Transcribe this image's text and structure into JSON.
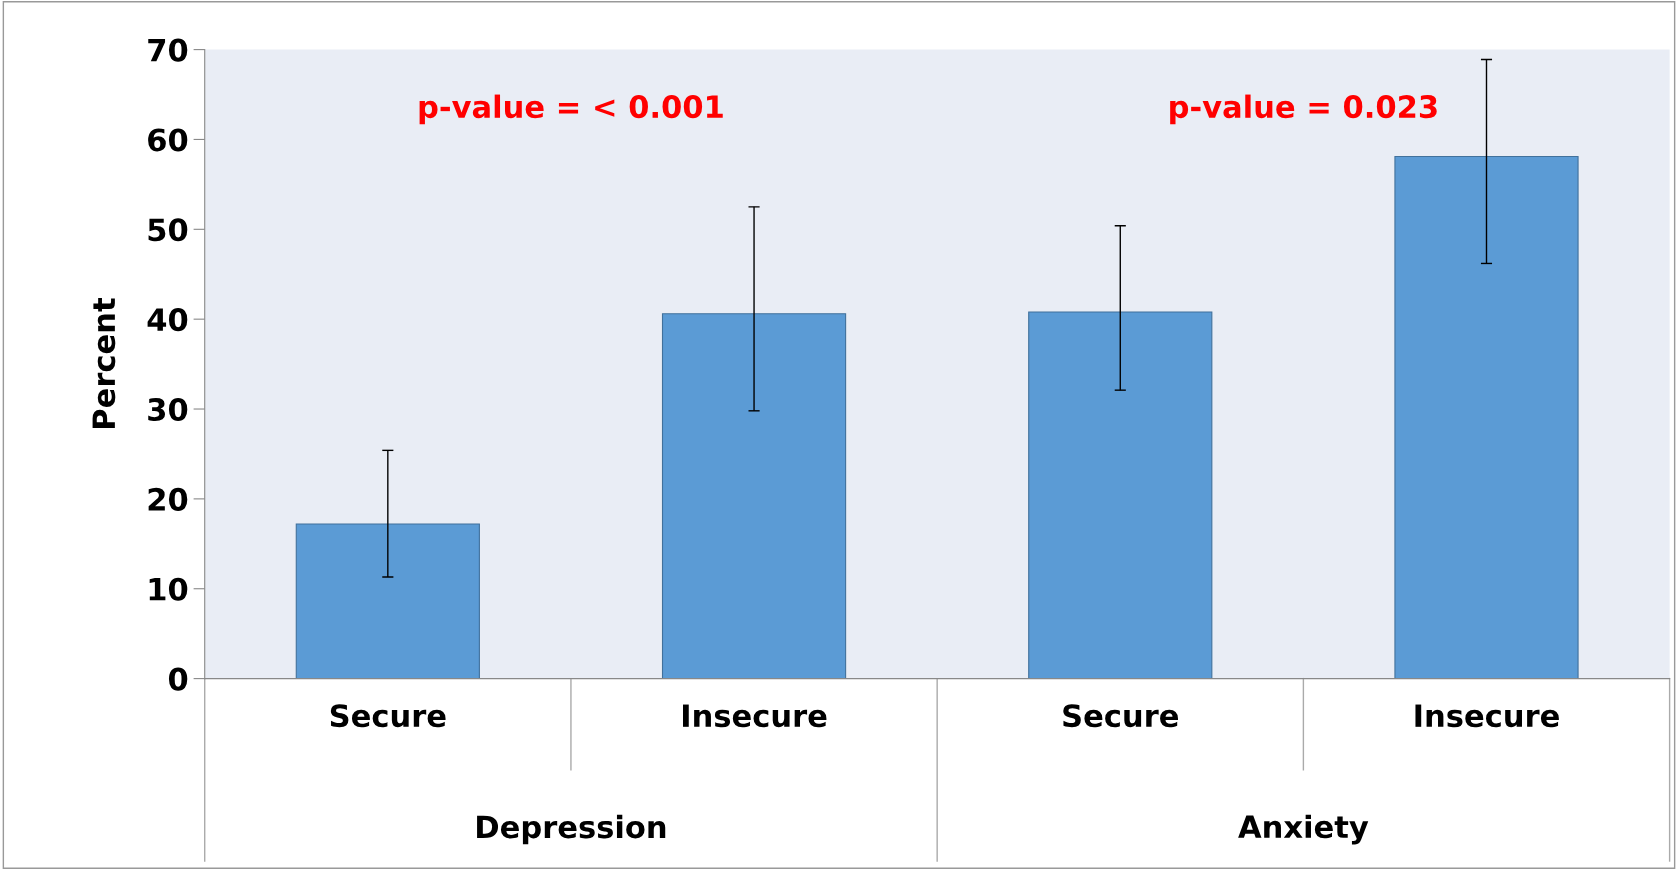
{
  "chart_data": {
    "type": "bar",
    "ylabel": "Percent",
    "categories": [
      "Secure",
      "Insecure",
      "Secure",
      "Insecure"
    ],
    "values": [
      17.2,
      40.6,
      40.8,
      58.1
    ],
    "errors": [
      [
        11.3,
        25.4
      ],
      [
        29.8,
        52.5
      ],
      [
        32.1,
        50.4
      ],
      [
        46.2,
        68.9
      ]
    ],
    "color": "#5b9bd5",
    "ylim": [
      0,
      70
    ],
    "yticks": [
      0,
      10,
      20,
      30,
      40,
      50,
      60,
      70
    ],
    "grid": false,
    "annotations": [
      "p-value = < 0.001",
      "p-value = 0.023",
      "Depression",
      "Anxiety"
    ]
  }
}
